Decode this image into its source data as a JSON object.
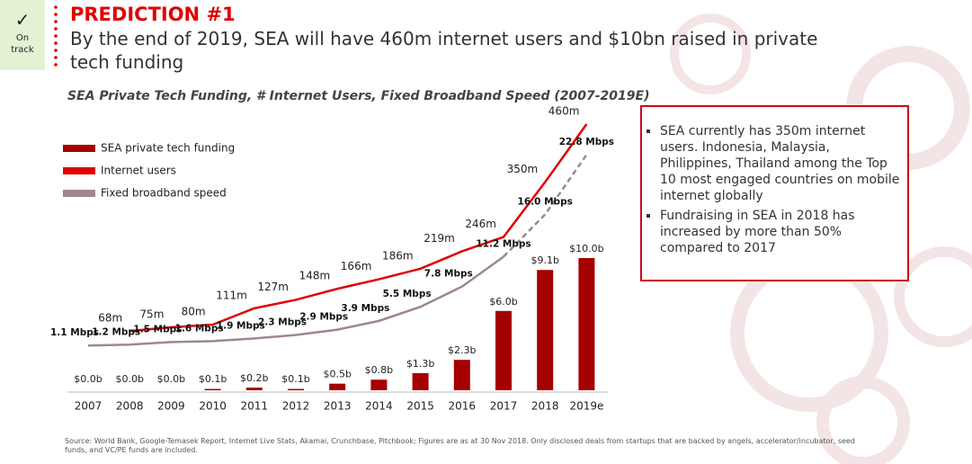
{
  "header": {
    "badge_mark": "✓",
    "badge_label": "On track",
    "title": "PREDICTION #1",
    "subtitle": "By the end of 2019, SEA will have 460m internet users and $10bn raised in private tech funding"
  },
  "chart_data": {
    "type": "combo",
    "title": "SEA Private Tech Funding, # Internet Users, Fixed Broadband Speed (2007-2019E)",
    "categories": [
      "2007",
      "2008",
      "2009",
      "2010",
      "2011",
      "2012",
      "2013",
      "2014",
      "2015",
      "2016",
      "2017",
      "2018",
      "2019e"
    ],
    "series": [
      {
        "name": "SEA private tech funding",
        "type": "bar",
        "color": "#a50000",
        "values": [
          0.0,
          0.0,
          0.0,
          0.1,
          0.2,
          0.1,
          0.5,
          0.8,
          1.3,
          2.3,
          6.0,
          9.1,
          10.0
        ],
        "value_labels": [
          "$0.0b",
          "$0.0b",
          "$0.0b",
          "$0.1b",
          "$0.2b",
          "$0.1b",
          "$0.5b",
          "$0.8b",
          "$1.3b",
          "$2.3b",
          "$6.0b",
          "$9.1b",
          "$10.0b"
        ]
      },
      {
        "name": "Internet users",
        "type": "line",
        "color": "#e00000",
        "values": [
          null,
          68,
          75,
          80,
          111,
          127,
          148,
          166,
          186,
          219,
          246,
          350,
          460
        ],
        "value_labels": [
          null,
          "68m",
          "75m",
          "80m",
          "111m",
          "127m",
          "148m",
          "166m",
          "186m",
          "219m",
          "246m",
          "350m",
          "460m"
        ]
      },
      {
        "name": "Fixed broadband speed",
        "type": "line",
        "color": "#9c8792",
        "dashed_last": 2,
        "values": [
          1.1,
          1.2,
          1.5,
          1.6,
          1.9,
          2.3,
          2.9,
          3.9,
          5.5,
          7.8,
          11.2,
          16.0,
          22.8
        ],
        "value_labels": [
          "1.1 Mbps",
          "1.2 Mbps",
          "1.5 Mbps",
          "1.6 Mbps",
          "1.9 Mbps",
          "2.3 Mbps",
          "2.9 Mbps",
          "3.9 Mbps",
          "5.5 Mbps",
          "7.8 Mbps",
          "11.2 Mbps",
          "16.0 Mbps",
          "22.8 Mbps"
        ]
      }
    ]
  },
  "callout": {
    "bullets": [
      "SEA currently has 350m internet users. Indonesia, Malaysia, Philippines, Thailand among the Top 10 most engaged countries on mobile internet globally",
      "Fundraising in SEA in 2018 has increased by more than 50% compared to 2017"
    ]
  },
  "footnote": "Source: World Bank, Google-Temasek Report, Internet Live Stats, Akamai, Crunchbase, Pitchbook; Figures are as at 30 Nov 2018. Only disclosed deals from startups that are backed by angels, accelerator/incubator, seed funds, and VC/PE funds are included."
}
